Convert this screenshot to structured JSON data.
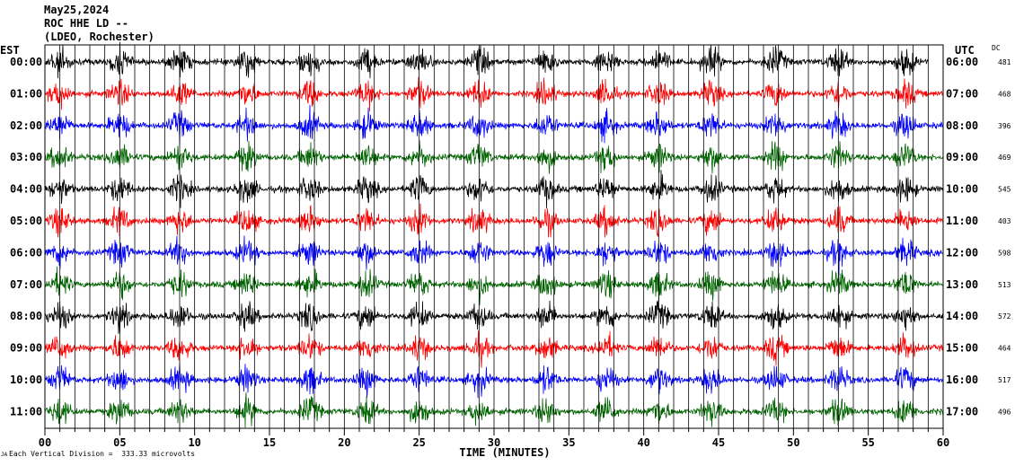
{
  "header": {
    "date": "May25,2024",
    "station": "ROC HHE LD --",
    "location": "(LDEO, Rochester)"
  },
  "footer": {
    "scale_note": "Each Vertical Division =  333.33 microvolts",
    "corner_mark": "JA"
  },
  "chart_data": {
    "type": "line",
    "title": "",
    "xlabel": "TIME (MINUTES)",
    "ylabel_left": "EST",
    "ylabel_right": "UTC",
    "dc_header": "DC",
    "xlim": [
      0,
      60
    ],
    "x_ticks": [
      {
        "v": 0,
        "label": "00"
      },
      {
        "v": 5,
        "label": "05"
      },
      {
        "v": 10,
        "label": "10"
      },
      {
        "v": 15,
        "label": "15"
      },
      {
        "v": 20,
        "label": "20"
      },
      {
        "v": 25,
        "label": "25"
      },
      {
        "v": 30,
        "label": "30"
      },
      {
        "v": 35,
        "label": "35"
      },
      {
        "v": 40,
        "label": "40"
      },
      {
        "v": 45,
        "label": "45"
      },
      {
        "v": 50,
        "label": "50"
      },
      {
        "v": 55,
        "label": "55"
      },
      {
        "v": 60,
        "label": "60"
      }
    ],
    "grid": true,
    "colors": [
      "#000000",
      "#ff0000",
      "#0000ff",
      "#006400"
    ],
    "burst_minutes": [
      1,
      5,
      9,
      13.5,
      17.7,
      21.5,
      25,
      29,
      33.5,
      37.5,
      41,
      44.5,
      48.8,
      53,
      57.5
    ],
    "rows": [
      {
        "est": "00:00",
        "utc": "06:00",
        "dc": "481",
        "end_minute": 59
      },
      {
        "est": "01:00",
        "utc": "07:00",
        "dc": "468"
      },
      {
        "est": "02:00",
        "utc": "08:00",
        "dc": "396"
      },
      {
        "est": "03:00",
        "utc": "09:00",
        "dc": "469"
      },
      {
        "est": "04:00",
        "utc": "10:00",
        "dc": "545"
      },
      {
        "est": "05:00",
        "utc": "11:00",
        "dc": "403"
      },
      {
        "est": "06:00",
        "utc": "12:00",
        "dc": "598"
      },
      {
        "est": "07:00",
        "utc": "13:00",
        "dc": "513"
      },
      {
        "est": "08:00",
        "utc": "14:00",
        "dc": "572"
      },
      {
        "est": "09:00",
        "utc": "15:00",
        "dc": "464"
      },
      {
        "est": "10:00",
        "utc": "16:00",
        "dc": "517"
      },
      {
        "est": "11:00",
        "utc": "17:00",
        "dc": "496"
      }
    ]
  }
}
